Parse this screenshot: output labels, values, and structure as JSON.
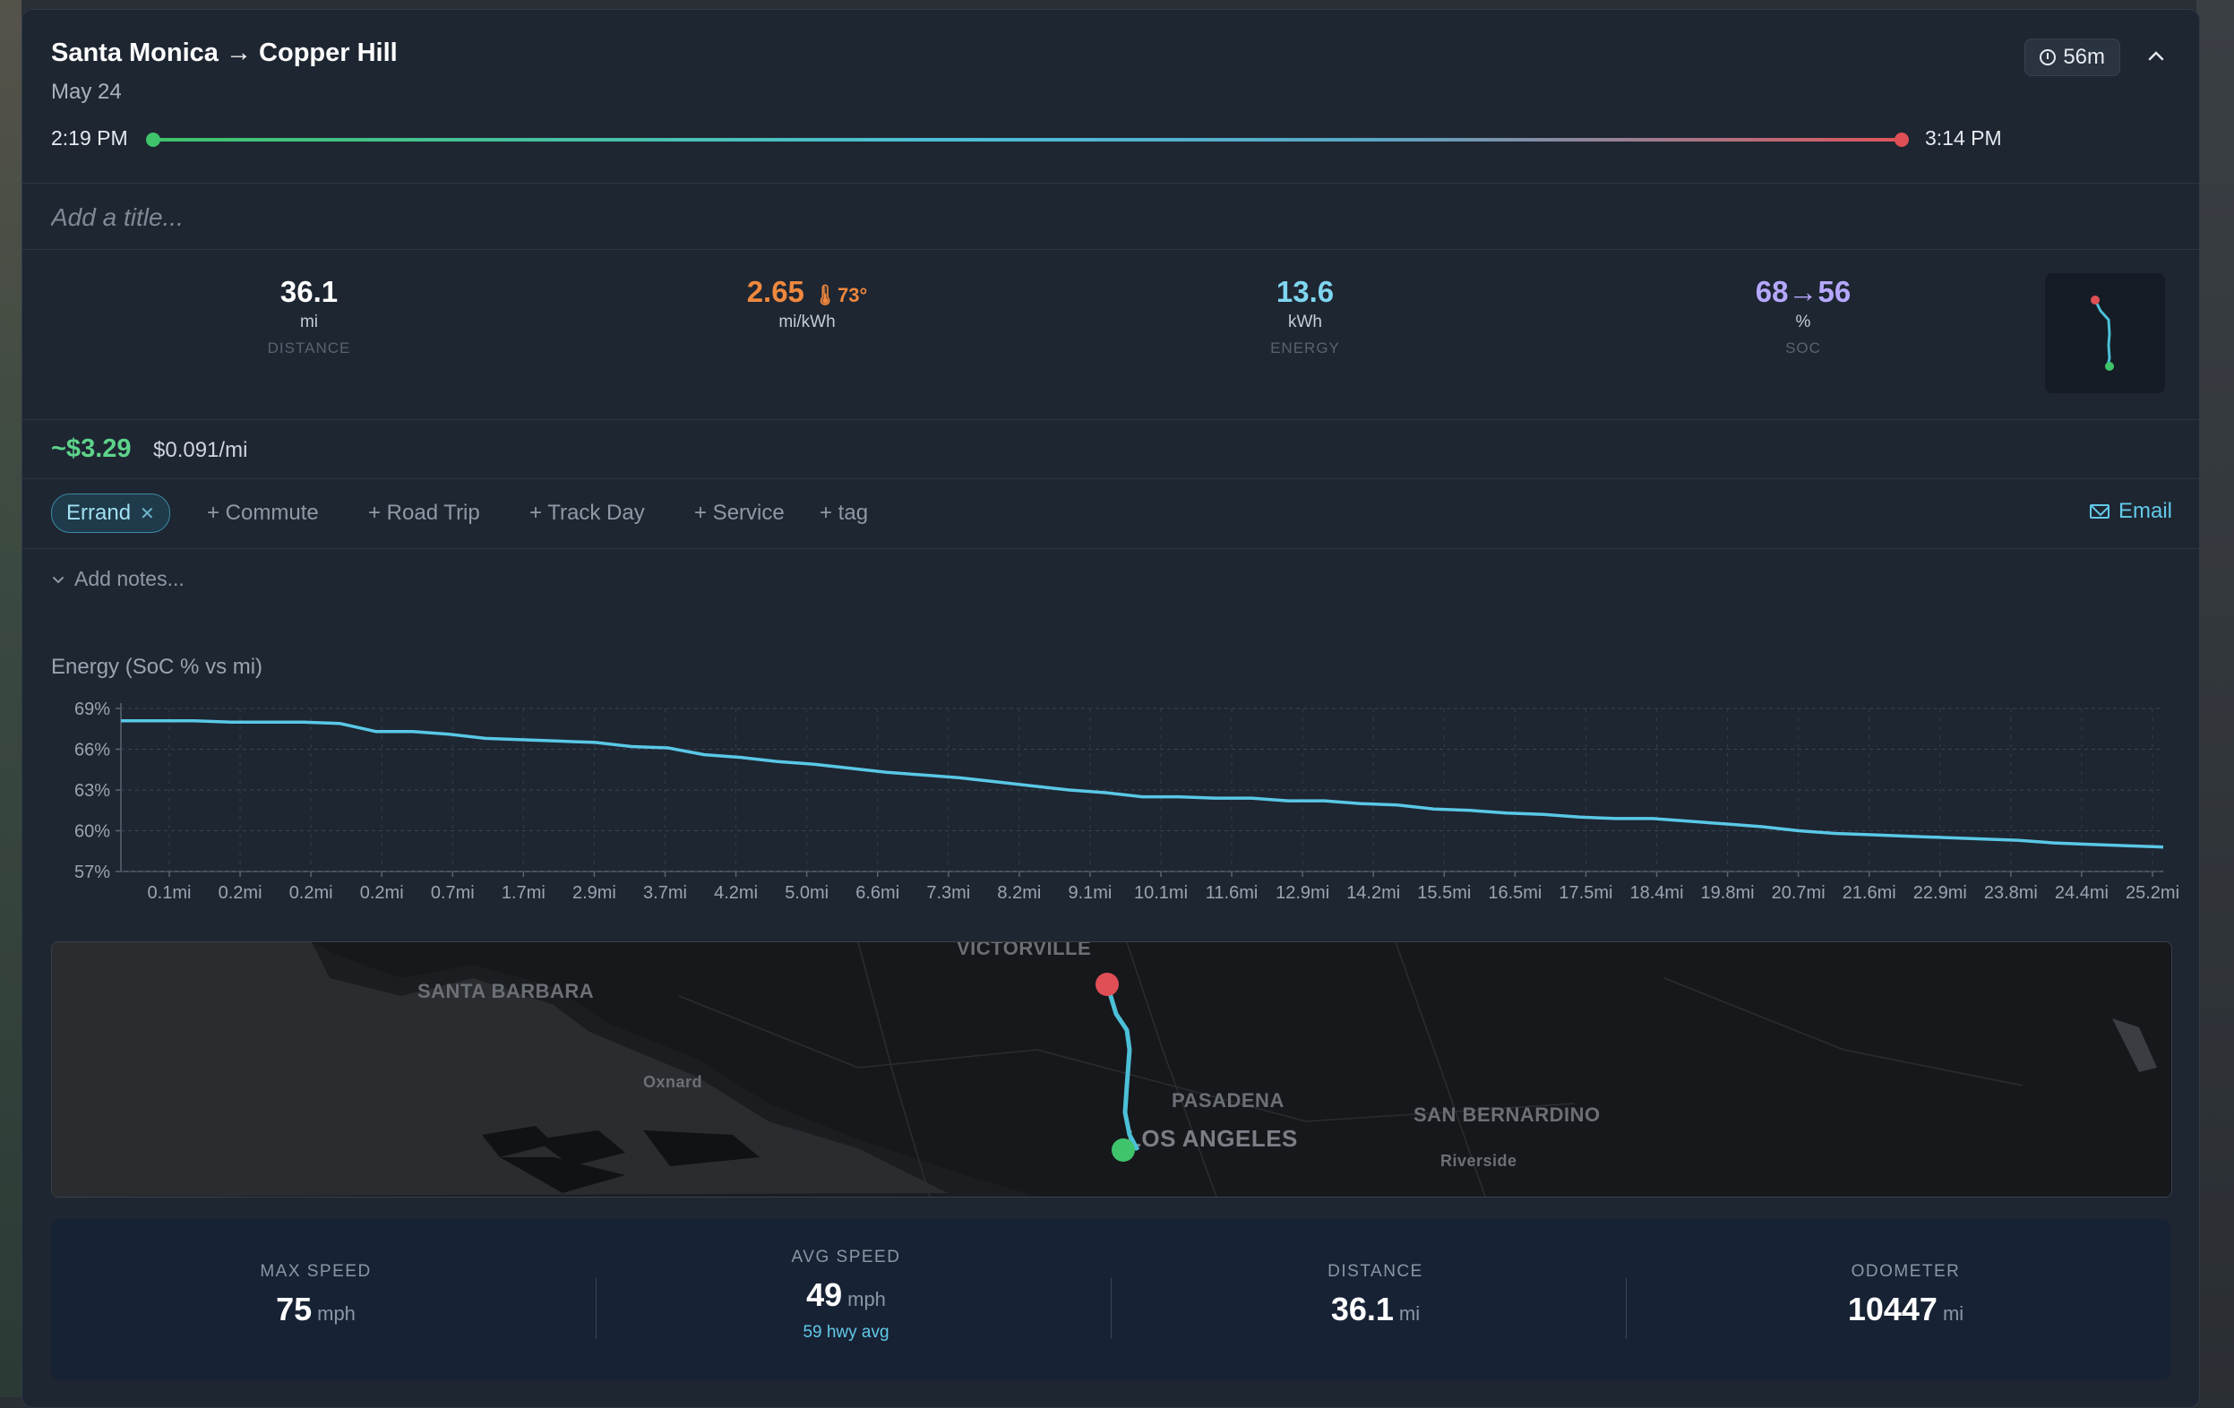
{
  "trip": {
    "title": "Santa Monica → Copper Hill",
    "date": "May 24",
    "duration": "56m",
    "start_time": "2:19 PM",
    "end_time": "3:14 PM",
    "title_placeholder": "Add a title..."
  },
  "stats": {
    "distance": {
      "value": "36.1",
      "unit": "mi",
      "label": "DISTANCE"
    },
    "efficiency": {
      "value": "2.65",
      "temp": "73°",
      "unit": "mi/kWh"
    },
    "energy": {
      "value": "13.6",
      "unit": "kWh",
      "label": "ENERGY"
    },
    "soc": {
      "value": "68→56",
      "unit": "%",
      "label": "SOC"
    }
  },
  "cost": {
    "total": "~$3.29",
    "per_mile": "$0.091/mi"
  },
  "tags": {
    "active": "Errand",
    "suggested": [
      "+ Commute",
      "+ Road Trip",
      "+ Track Day",
      "+ Service",
      "+ tag"
    ]
  },
  "email_label": "Email",
  "notes_label": "Add notes...",
  "colors": {
    "accent": "#62c9e8",
    "green": "#3fc46b",
    "red": "#e04f55",
    "orange": "#f0883e",
    "purple": "#b6a8ff"
  },
  "chart_data": {
    "type": "line",
    "title": "Energy (SoC % vs mi)",
    "y_ticks": [
      "69%",
      "66%",
      "63%",
      "60%",
      "57%"
    ],
    "ylim": [
      57,
      69
    ],
    "x_ticks": [
      "0.1mi",
      "0.2mi",
      "0.2mi",
      "0.2mi",
      "0.7mi",
      "1.7mi",
      "2.9mi",
      "3.7mi",
      "4.2mi",
      "5.0mi",
      "6.6mi",
      "7.3mi",
      "8.2mi",
      "9.1mi",
      "10.1mi",
      "11.6mi",
      "12.9mi",
      "14.2mi",
      "15.5mi",
      "16.5mi",
      "17.5mi",
      "18.4mi",
      "19.8mi",
      "20.7mi",
      "21.6mi",
      "22.9mi",
      "23.8mi",
      "24.4mi",
      "25.2mi"
    ],
    "series": [
      {
        "values": [
          68.1,
          68.1,
          68.1,
          68.0,
          68.0,
          68.0,
          67.9,
          67.3,
          67.3,
          67.1,
          66.8,
          66.7,
          66.6,
          66.5,
          66.2,
          66.1,
          65.6,
          65.4,
          65.1,
          64.9,
          64.6,
          64.3,
          64.1,
          63.9,
          63.6,
          63.3,
          63.0,
          62.8,
          62.5,
          62.5,
          62.4,
          62.4,
          62.2,
          62.2,
          62.0,
          61.9,
          61.6,
          61.5,
          61.3,
          61.2,
          61.0,
          60.9,
          60.9,
          60.7,
          60.5,
          60.3,
          60.0,
          59.8,
          59.7,
          59.6,
          59.5,
          59.4,
          59.3,
          59.1,
          59.0,
          58.9,
          58.8
        ]
      }
    ]
  },
  "map": {
    "labels": {
      "santa_barbara": "SANTA BARBARA",
      "victorville": "VICTORVILLE",
      "oxnard": "Oxnard",
      "pasadena": "PASADENA",
      "los_angeles": "LOS ANGELES",
      "san_bernardino": "SAN BERNARDINO",
      "riverside": "Riverside"
    }
  },
  "summary": {
    "max_speed": {
      "label": "MAX SPEED",
      "value": "75",
      "unit": "mph"
    },
    "avg_speed": {
      "label": "AVG SPEED",
      "value": "49",
      "unit": "mph",
      "sub": "59 hwy avg"
    },
    "distance": {
      "label": "DISTANCE",
      "value": "36.1",
      "unit": "mi"
    },
    "odometer": {
      "label": "ODOMETER",
      "value": "10447",
      "unit": "mi"
    }
  }
}
